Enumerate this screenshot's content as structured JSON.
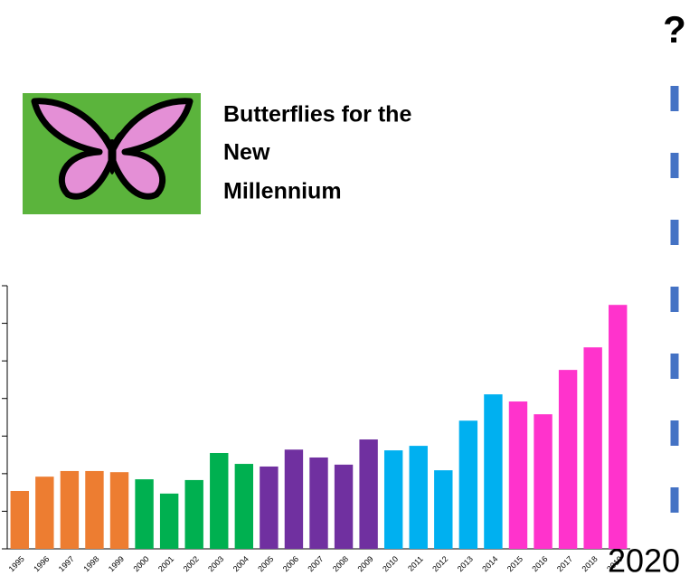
{
  "chart_data": {
    "type": "bar",
    "title_lines": [
      "Butterflies for the",
      "New",
      "Millennium"
    ],
    "question": "?",
    "next_year": "2020",
    "categories": [
      "1995",
      "1996",
      "1997",
      "1998",
      "1999",
      "2000",
      "2001",
      "2002",
      "2003",
      "2004",
      "2005",
      "2006",
      "2007",
      "2008",
      "2009",
      "2010",
      "2011",
      "2012",
      "2013",
      "2014",
      "2015",
      "2016",
      "2017",
      "2018",
      "2019"
    ],
    "values": [
      1.54,
      1.92,
      2.07,
      2.07,
      2.04,
      1.85,
      1.47,
      1.83,
      2.55,
      2.26,
      2.19,
      2.64,
      2.43,
      2.24,
      2.91,
      2.62,
      2.74,
      2.09,
      3.41,
      4.11,
      3.92,
      3.58,
      4.76,
      5.36,
      6.49
    ],
    "colors": [
      "#ed7d31",
      "#ed7d31",
      "#ed7d31",
      "#ed7d31",
      "#ed7d31",
      "#00b050",
      "#00b050",
      "#00b050",
      "#00b050",
      "#00b050",
      "#7030a0",
      "#7030a0",
      "#7030a0",
      "#7030a0",
      "#7030a0",
      "#00b0f0",
      "#00b0f0",
      "#00b0f0",
      "#00b0f0",
      "#00b0f0",
      "#ff33cc",
      "#ff33cc",
      "#ff33cc",
      "#ff33cc",
      "#ff33cc"
    ],
    "ylim": [
      0,
      7
    ],
    "yticks": [
      0,
      1,
      2,
      3,
      4,
      5,
      6,
      7
    ]
  }
}
